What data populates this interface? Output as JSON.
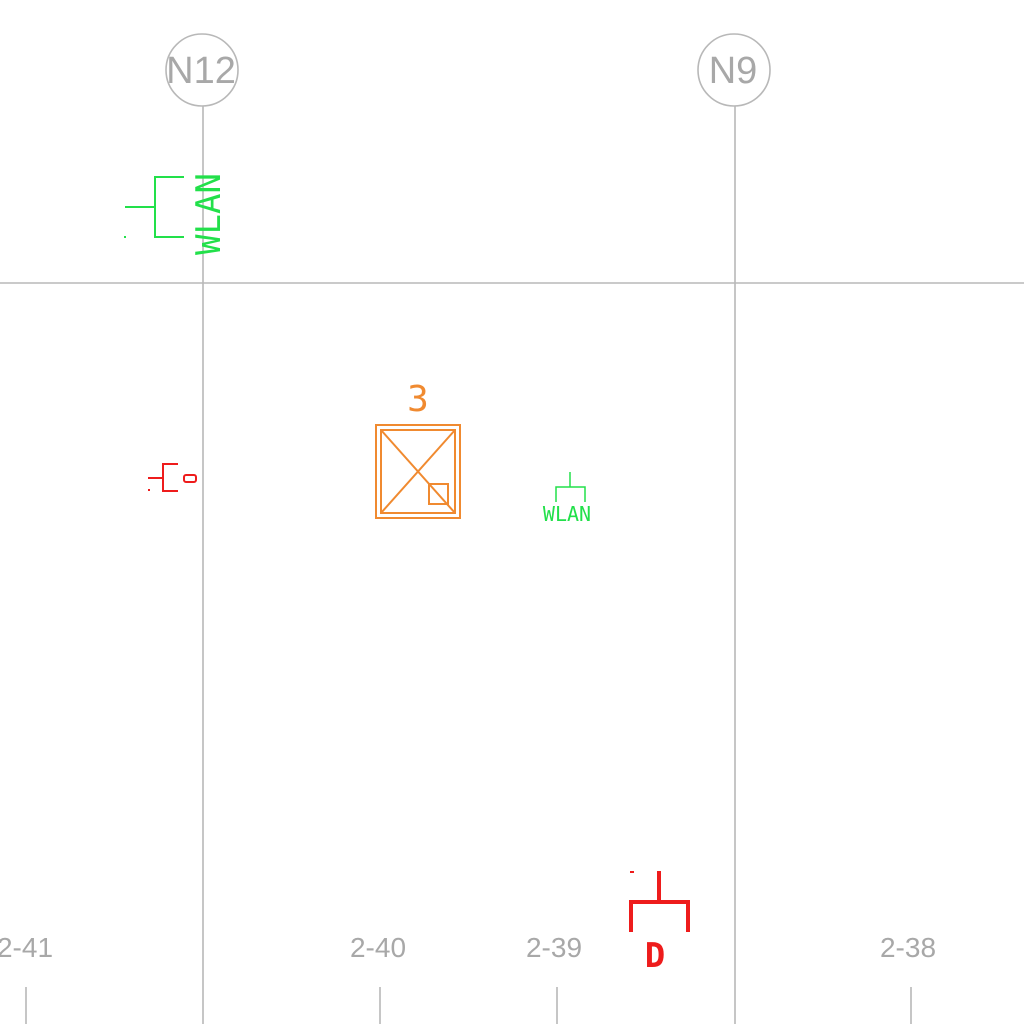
{
  "colors": {
    "grid": "#b8b8b8",
    "grid_text": "#a8a8a8",
    "wlan_symbol": "#22e04a",
    "data_outlet_symbol": "#ee1c1c",
    "distribution_box": "#f08a30",
    "background": "#ffffff"
  },
  "grid_axes": [
    {
      "id": "n12",
      "label": "N12"
    },
    {
      "id": "n9",
      "label": "N9"
    }
  ],
  "ruler_labels": [
    "2-41",
    "2-40",
    "2-39",
    "2-38"
  ],
  "symbols": {
    "wlan_large": {
      "icon": "wlan-access-point-icon",
      "label": "WLAN"
    },
    "wlan_small": {
      "icon": "wlan-access-point-icon",
      "label": "WLAN"
    },
    "distribution_box": {
      "icon": "distribution-box-icon",
      "number": "3"
    },
    "data_outlet_bottom": {
      "icon": "data-outlet-icon",
      "label": "D"
    },
    "outlet_wall": {
      "icon": "wall-outlet-icon"
    }
  }
}
